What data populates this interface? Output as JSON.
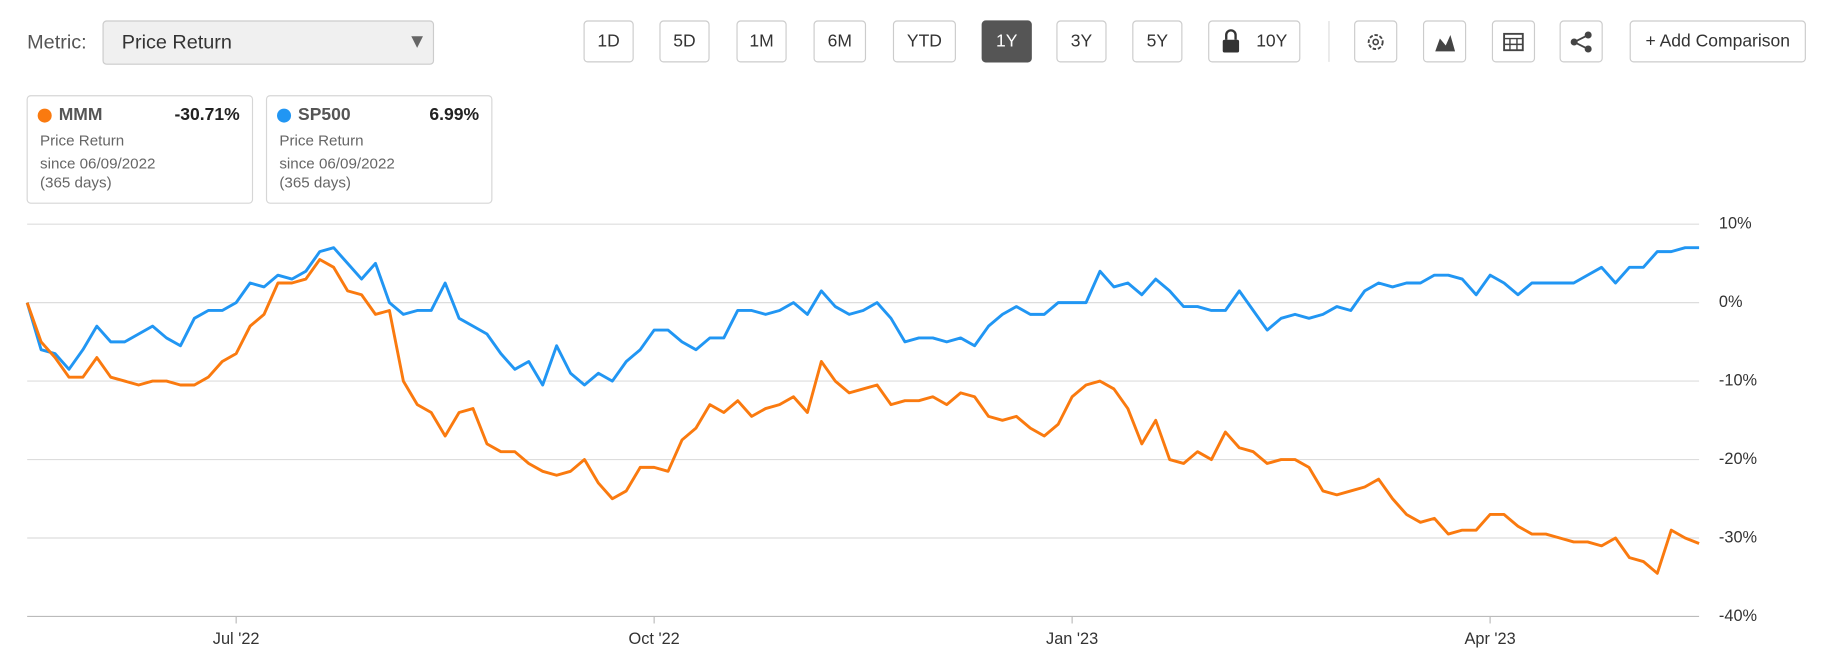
{
  "ui": {
    "metric_label": "Metric:",
    "metric_value": "Price Return",
    "ranges": [
      "1D",
      "5D",
      "1M",
      "6M",
      "YTD",
      "1Y",
      "3Y",
      "5Y",
      "10Y"
    ],
    "selected_range": "1Y",
    "add_comparison": "+ Add Comparison"
  },
  "chart_data": {
    "type": "line",
    "categories": [
      null,
      null,
      null,
      null,
      null,
      null,
      null,
      null,
      null,
      null,
      null,
      null,
      null,
      null,
      null,
      "Jul '22",
      null,
      null,
      null,
      null,
      null,
      null,
      null,
      null,
      null,
      null,
      null,
      null,
      null,
      null,
      null,
      null,
      null,
      null,
      null,
      null,
      null,
      null,
      null,
      null,
      null,
      null,
      null,
      null,
      null,
      "Oct '22",
      null,
      null,
      null,
      null,
      null,
      null,
      null,
      null,
      null,
      null,
      null,
      null,
      null,
      null,
      null,
      null,
      null,
      null,
      null,
      null,
      null,
      null,
      null,
      null,
      null,
      null,
      null,
      null,
      null,
      "Jan '23",
      null,
      null,
      null,
      null,
      null,
      null,
      null,
      null,
      null,
      null,
      null,
      null,
      null,
      null,
      null,
      null,
      null,
      null,
      null,
      null,
      null,
      null,
      null,
      null,
      null,
      null,
      null,
      null,
      null,
      "Apr '23",
      null,
      null,
      null,
      null,
      null,
      null,
      null,
      null,
      null,
      null,
      null,
      null,
      null,
      null,
      null
    ],
    "series": [
      {
        "name": "MMM",
        "color": "#fa7a0f",
        "change_label": "-30.71%",
        "metric": "Price Return",
        "since": "since 06/09/2022",
        "days": "(365 days)",
        "values": [
          0,
          -5,
          -7,
          -9.5,
          -9.5,
          -7,
          -9.5,
          -10,
          -10.5,
          -10,
          -10,
          -10.5,
          -10.5,
          -9.5,
          -7.5,
          -6.5,
          -3,
          -1.5,
          2.5,
          2.5,
          3,
          5.5,
          4.5,
          1.5,
          1,
          -1.5,
          -1,
          -10,
          -13,
          -14,
          -17,
          -14,
          -13.5,
          -18,
          -19,
          -19,
          -20.5,
          -21.5,
          -22,
          -21.5,
          -20,
          -23,
          -25,
          -24,
          -21,
          -21,
          -21.5,
          -17.5,
          -16,
          -13,
          -14,
          -12.5,
          -14.5,
          -13.5,
          -13,
          -12,
          -14,
          -7.5,
          -10,
          -11.5,
          -11,
          -10.5,
          -13,
          -12.5,
          -12.5,
          -12,
          -13,
          -11.5,
          -12,
          -14.5,
          -15,
          -14.5,
          -16,
          -17,
          -15.5,
          -12,
          -10.5,
          -10,
          -11,
          -13.5,
          -18,
          -15,
          -20,
          -20.5,
          -19,
          -20,
          -16.5,
          -18.5,
          -19,
          -20.5,
          -20,
          -20,
          -21,
          -24,
          -24.5,
          -24,
          -23.5,
          -22.5,
          -25,
          -27,
          -28,
          -27.5,
          -29.5,
          -29,
          -29,
          -27,
          -27,
          -28.5,
          -29.5,
          -29.5,
          -30,
          -30.5,
          -30.5,
          -31,
          -30,
          -32.5,
          -33,
          -34.5,
          -29,
          -30,
          -30.7
        ]
      },
      {
        "name": "SP500",
        "color": "#2196f3",
        "change_label": "6.99%",
        "metric": "Price Return",
        "since": "since 06/09/2022",
        "days": "(365 days)",
        "values": [
          0,
          -6,
          -6.5,
          -8.5,
          -6,
          -3,
          -5,
          -5,
          -4,
          -3,
          -4.5,
          -5.5,
          -2,
          -1,
          -1,
          0,
          2.5,
          2,
          3.5,
          3,
          4,
          6.5,
          7,
          5,
          3,
          5,
          0,
          -1.5,
          -1,
          -1,
          2.5,
          -2,
          -3,
          -4,
          -6.5,
          -8.5,
          -7.5,
          -10.5,
          -5.5,
          -9,
          -10.5,
          -9,
          -10,
          -7.5,
          -6,
          -3.5,
          -3.5,
          -5,
          -6,
          -4.5,
          -4.5,
          -1,
          -1,
          -1.5,
          -1,
          0,
          -1.5,
          1.5,
          -0.5,
          -1.5,
          -1,
          0,
          -2,
          -5,
          -4.5,
          -4.5,
          -5,
          -4.5,
          -5.5,
          -3,
          -1.5,
          -0.5,
          -1.5,
          -1.5,
          0,
          0,
          0,
          4,
          2,
          2.5,
          1,
          3,
          1.5,
          -0.5,
          -0.5,
          -1,
          -1,
          1.5,
          -1,
          -3.5,
          -2,
          -1.5,
          -2,
          -1.5,
          -0.5,
          -1,
          1.5,
          2.5,
          2,
          2.5,
          2.5,
          3.5,
          3.5,
          3,
          1,
          3.5,
          2.5,
          1,
          2.5,
          2.5,
          2.5,
          2.5,
          3.5,
          4.5,
          2.5,
          4.5,
          4.5,
          6.5,
          6.5,
          7,
          7
        ]
      }
    ],
    "ylim": [
      -40,
      10
    ],
    "yticks": [
      {
        "value": 10,
        "label": "10%"
      },
      {
        "value": 0,
        "label": "0%"
      },
      {
        "value": -10,
        "label": "-10%"
      },
      {
        "value": -20,
        "label": "-20%"
      },
      {
        "value": -30,
        "label": "-30%"
      },
      {
        "value": -40,
        "label": "-40%"
      }
    ],
    "grid": true,
    "y_axis_side": "right"
  }
}
